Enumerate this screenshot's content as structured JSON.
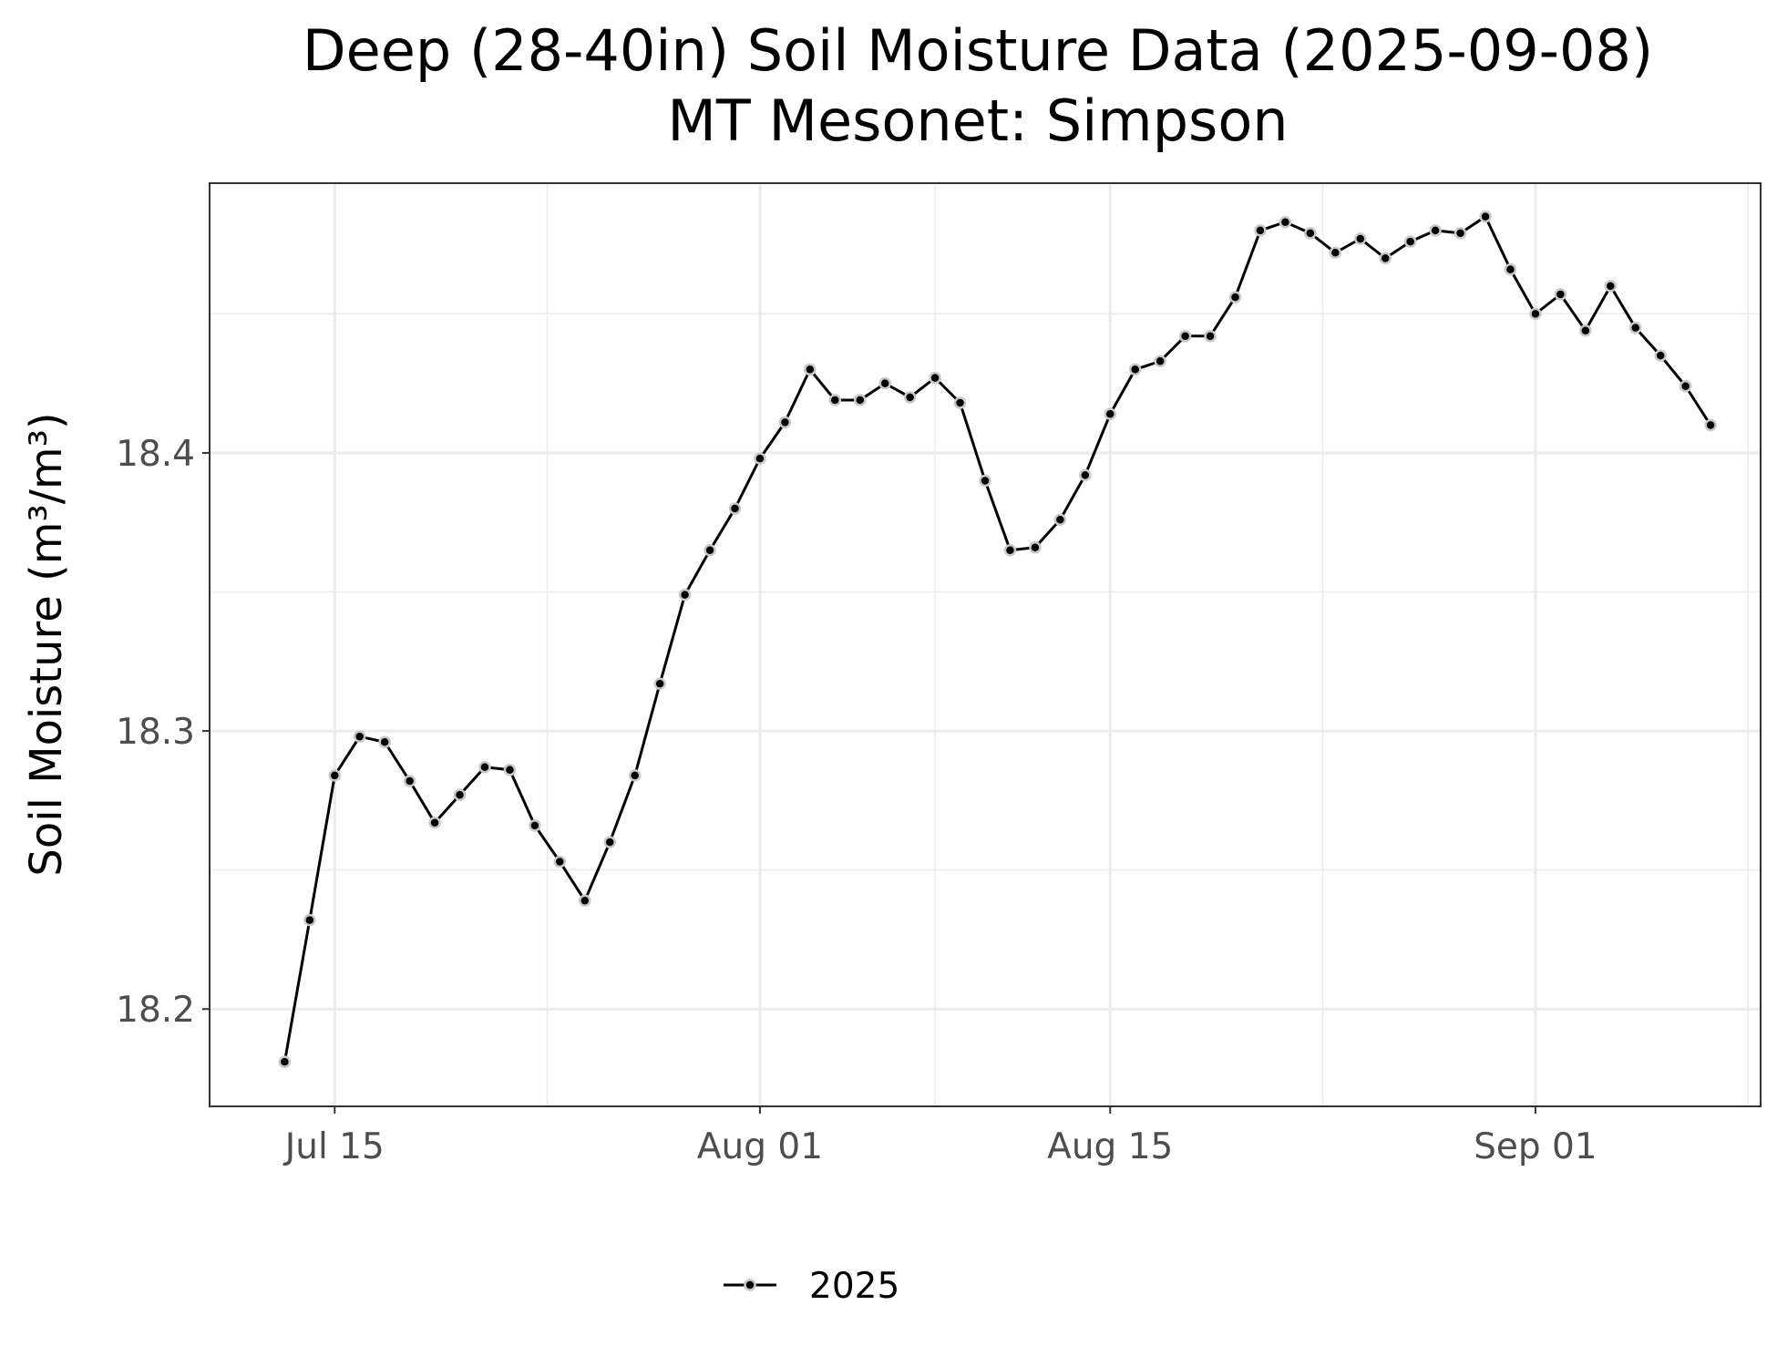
{
  "chart_data": {
    "type": "line",
    "title": "Deep (28-40in) Soil Moisture Data (2025-09-08)",
    "subtitle": "MT Mesonet: Simpson",
    "xlabel": "",
    "ylabel": "Soil Moisture (m³/m³)",
    "x_ticks": [
      "Jul 15",
      "Aug 01",
      "Aug 15",
      "Sep 01"
    ],
    "y_ticks": [
      "18.2",
      "18.3",
      "18.4"
    ],
    "xlim": [
      "2025-07-10",
      "2025-09-10"
    ],
    "ylim": [
      18.165,
      18.497
    ],
    "grid": true,
    "legend_position": "bottom",
    "series": [
      {
        "name": "2025",
        "color": "#000000",
        "marker_fill": "#000000",
        "marker_outline": "#c8c8c8",
        "x": [
          "2025-07-13",
          "2025-07-14",
          "2025-07-15",
          "2025-07-16",
          "2025-07-17",
          "2025-07-18",
          "2025-07-19",
          "2025-07-20",
          "2025-07-21",
          "2025-07-22",
          "2025-07-23",
          "2025-07-24",
          "2025-07-25",
          "2025-07-26",
          "2025-07-27",
          "2025-07-28",
          "2025-07-29",
          "2025-07-30",
          "2025-07-31",
          "2025-08-01",
          "2025-08-02",
          "2025-08-03",
          "2025-08-04",
          "2025-08-05",
          "2025-08-06",
          "2025-08-07",
          "2025-08-08",
          "2025-08-09",
          "2025-08-10",
          "2025-08-11",
          "2025-08-12",
          "2025-08-13",
          "2025-08-14",
          "2025-08-15",
          "2025-08-16",
          "2025-08-17",
          "2025-08-18",
          "2025-08-19",
          "2025-08-20",
          "2025-08-21",
          "2025-08-22",
          "2025-08-23",
          "2025-08-24",
          "2025-08-25",
          "2025-08-26",
          "2025-08-27",
          "2025-08-28",
          "2025-08-29",
          "2025-08-30",
          "2025-08-31",
          "2025-09-01",
          "2025-09-02",
          "2025-09-03",
          "2025-09-04",
          "2025-09-05",
          "2025-09-06",
          "2025-09-07",
          "2025-09-08"
        ],
        "y": [
          18.181,
          18.232,
          18.284,
          18.298,
          18.296,
          18.282,
          18.267,
          18.277,
          18.287,
          18.286,
          18.266,
          18.253,
          18.239,
          18.26,
          18.284,
          18.317,
          18.349,
          18.365,
          18.38,
          18.398,
          18.411,
          18.43,
          18.419,
          18.419,
          18.425,
          18.42,
          18.427,
          18.418,
          18.39,
          18.365,
          18.366,
          18.376,
          18.392,
          18.414,
          18.43,
          18.433,
          18.442,
          18.442,
          18.456,
          18.48,
          18.483,
          18.479,
          18.472,
          18.477,
          18.47,
          18.476,
          18.48,
          18.479,
          18.485,
          18.466,
          18.45,
          18.457,
          18.444,
          18.46,
          18.445,
          18.435,
          18.424,
          18.41
        ]
      }
    ]
  }
}
